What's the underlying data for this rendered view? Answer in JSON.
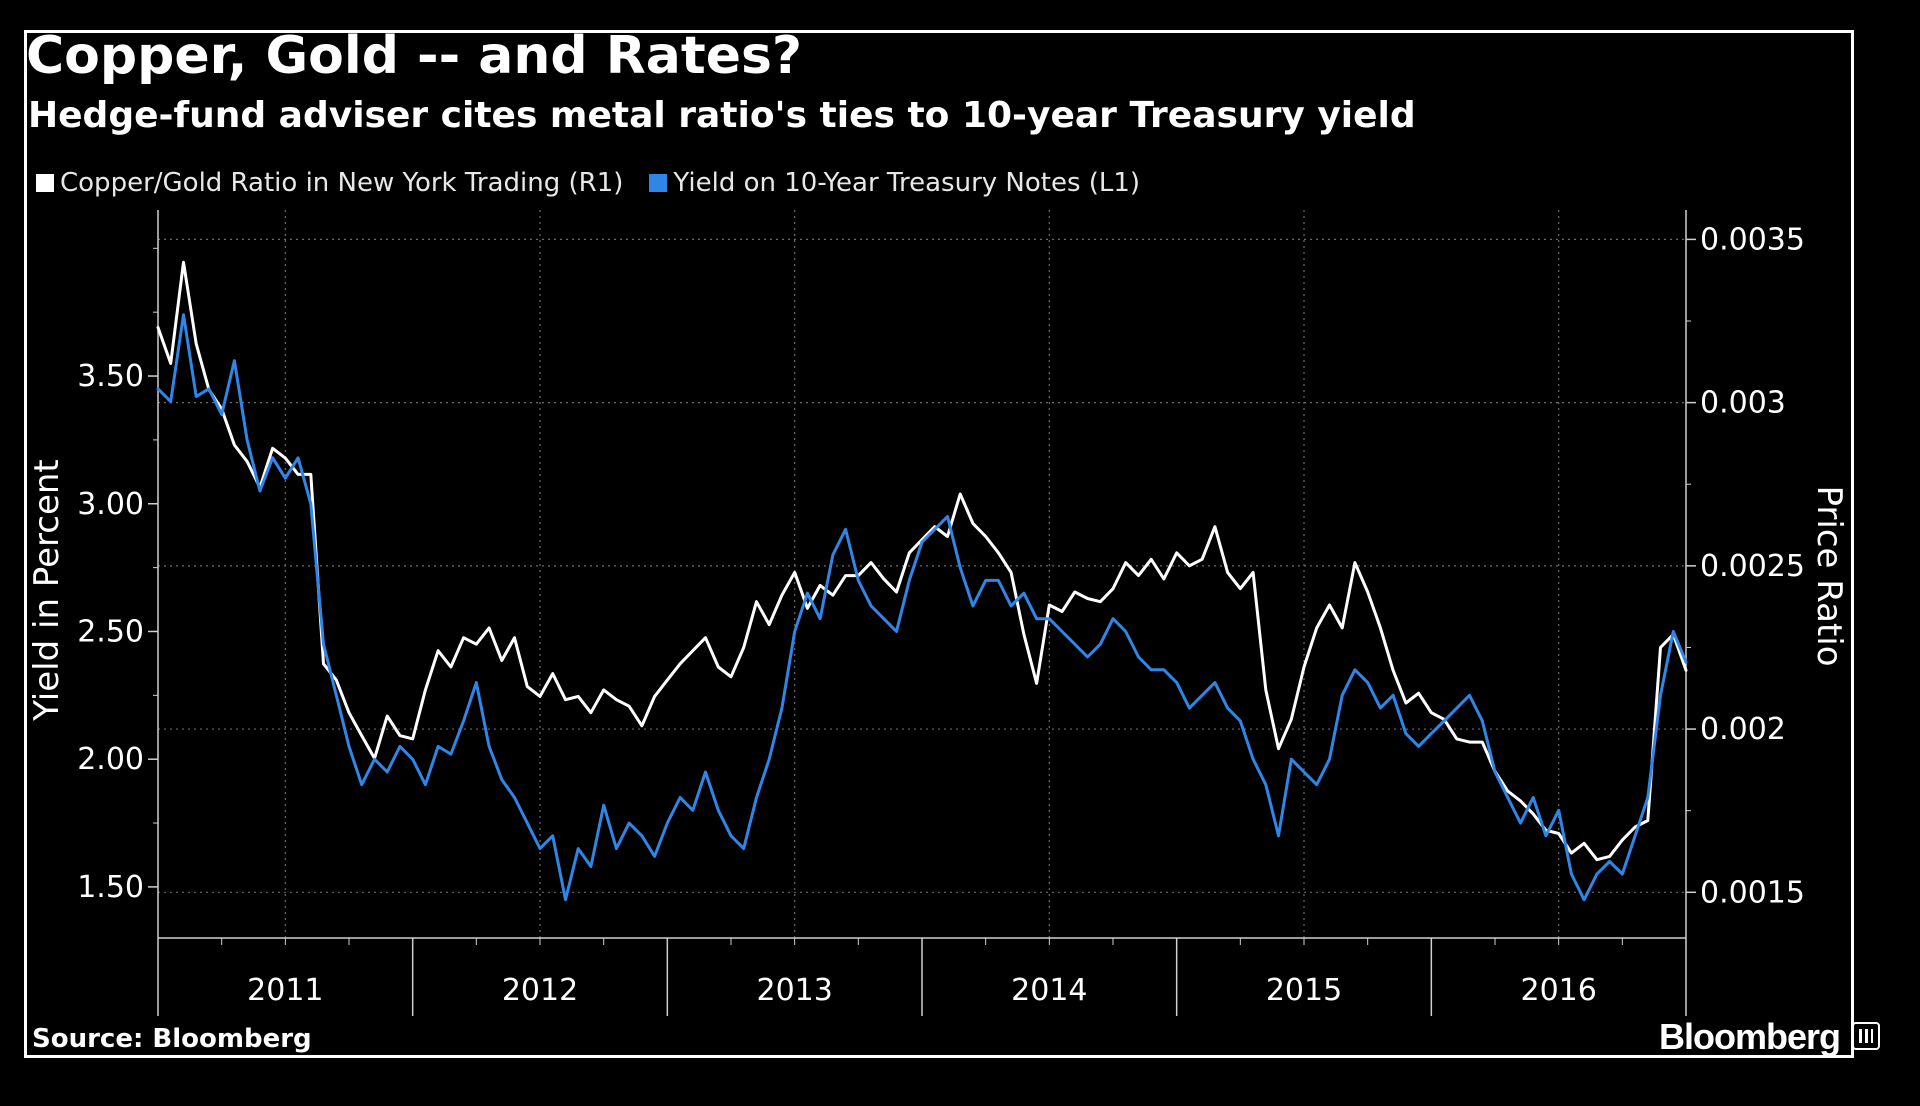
{
  "title": "Copper, Gold -- and Rates?",
  "subtitle": "Hedge-fund adviser cites metal ratio's ties to 10-year Treasury yield",
  "source": "Source: Bloomberg",
  "brand": "Bloomberg",
  "colors": {
    "background": "#000000",
    "copper_gold": "#ffffff",
    "treasury": "#2f86e6",
    "grid": "#6a6a6a",
    "axis": "#cfcfcf"
  },
  "chart_data": {
    "type": "line",
    "title": "Copper, Gold -- and Rates?",
    "subtitle": "Hedge-fund adviser cites metal ratio's ties to 10-year Treasury yield",
    "xlim": [
      2010.5,
      2016.5
    ],
    "x_tick_labels": [
      "2011",
      "2012",
      "2013",
      "2014",
      "2015",
      "2016"
    ],
    "left_axis": {
      "label": "Yield in Percent",
      "ylim": [
        1.3,
        4.15
      ],
      "ticks": [
        1.5,
        2.0,
        2.5,
        3.0,
        3.5
      ],
      "tick_labels": [
        "1.50",
        "2.00",
        "2.50",
        "3.00",
        "3.50"
      ]
    },
    "right_axis": {
      "label": "Price Ratio",
      "ylim": [
        0.00136,
        0.00359
      ],
      "ticks": [
        0.0015,
        0.002,
        0.0025,
        0.003,
        0.0035
      ],
      "tick_labels": [
        "0.0015",
        "0.002",
        "0.0025",
        "0.003",
        "0.0035"
      ]
    },
    "legend": {
      "position": "top-left"
    },
    "grid": true,
    "series": [
      {
        "name": "Copper/Gold Ratio in New York Trading (R1)",
        "axis": "right",
        "color": "#ffffff",
        "points": [
          [
            2010.5,
            0.00323
          ],
          [
            2010.55,
            0.00312
          ],
          [
            2010.6,
            0.00343
          ],
          [
            2010.65,
            0.00318
          ],
          [
            2010.7,
            0.00304
          ],
          [
            2010.75,
            0.00298
          ],
          [
            2010.8,
            0.00287
          ],
          [
            2010.85,
            0.00282
          ],
          [
            2010.9,
            0.00274
          ],
          [
            2010.95,
            0.00286
          ],
          [
            2011.0,
            0.00283
          ],
          [
            2011.05,
            0.00278
          ],
          [
            2011.1,
            0.00278
          ],
          [
            2011.15,
            0.0022
          ],
          [
            2011.2,
            0.00215
          ],
          [
            2011.25,
            0.00205
          ],
          [
            2011.3,
            0.00198
          ],
          [
            2011.35,
            0.00191
          ],
          [
            2011.4,
            0.00204
          ],
          [
            2011.45,
            0.00198
          ],
          [
            2011.5,
            0.00197
          ],
          [
            2011.55,
            0.00212
          ],
          [
            2011.6,
            0.00224
          ],
          [
            2011.65,
            0.00219
          ],
          [
            2011.7,
            0.00228
          ],
          [
            2011.75,
            0.00226
          ],
          [
            2011.8,
            0.00231
          ],
          [
            2011.85,
            0.00221
          ],
          [
            2011.9,
            0.00228
          ],
          [
            2011.95,
            0.00213
          ],
          [
            2012.0,
            0.0021
          ],
          [
            2012.05,
            0.00217
          ],
          [
            2012.1,
            0.00209
          ],
          [
            2012.15,
            0.0021
          ],
          [
            2012.2,
            0.00205
          ],
          [
            2012.25,
            0.00212
          ],
          [
            2012.3,
            0.00209
          ],
          [
            2012.35,
            0.00207
          ],
          [
            2012.4,
            0.00201
          ],
          [
            2012.45,
            0.0021
          ],
          [
            2012.5,
            0.00215
          ],
          [
            2012.55,
            0.0022
          ],
          [
            2012.6,
            0.00224
          ],
          [
            2012.65,
            0.00228
          ],
          [
            2012.7,
            0.00219
          ],
          [
            2012.75,
            0.00216
          ],
          [
            2012.8,
            0.00225
          ],
          [
            2012.85,
            0.00239
          ],
          [
            2012.9,
            0.00232
          ],
          [
            2012.95,
            0.00241
          ],
          [
            2013.0,
            0.00248
          ],
          [
            2013.05,
            0.00237
          ],
          [
            2013.1,
            0.00244
          ],
          [
            2013.15,
            0.00241
          ],
          [
            2013.2,
            0.00247
          ],
          [
            2013.25,
            0.00247
          ],
          [
            2013.3,
            0.00251
          ],
          [
            2013.35,
            0.00246
          ],
          [
            2013.4,
            0.00242
          ],
          [
            2013.45,
            0.00254
          ],
          [
            2013.5,
            0.00258
          ],
          [
            2013.55,
            0.00262
          ],
          [
            2013.6,
            0.00259
          ],
          [
            2013.65,
            0.00272
          ],
          [
            2013.7,
            0.00263
          ],
          [
            2013.75,
            0.00259
          ],
          [
            2013.8,
            0.00254
          ],
          [
            2013.85,
            0.00248
          ],
          [
            2013.9,
            0.00229
          ],
          [
            2013.95,
            0.00214
          ],
          [
            2014.0,
            0.00238
          ],
          [
            2014.05,
            0.00236
          ],
          [
            2014.1,
            0.00242
          ],
          [
            2014.15,
            0.0024
          ],
          [
            2014.2,
            0.00239
          ],
          [
            2014.25,
            0.00243
          ],
          [
            2014.3,
            0.00251
          ],
          [
            2014.35,
            0.00247
          ],
          [
            2014.4,
            0.00252
          ],
          [
            2014.45,
            0.00246
          ],
          [
            2014.5,
            0.00254
          ],
          [
            2014.55,
            0.0025
          ],
          [
            2014.6,
            0.00252
          ],
          [
            2014.65,
            0.00262
          ],
          [
            2014.7,
            0.00248
          ],
          [
            2014.75,
            0.00243
          ],
          [
            2014.8,
            0.00248
          ],
          [
            2014.85,
            0.00212
          ],
          [
            2014.9,
            0.00194
          ],
          [
            2014.95,
            0.00203
          ],
          [
            2015.0,
            0.00219
          ],
          [
            2015.05,
            0.00231
          ],
          [
            2015.1,
            0.00238
          ],
          [
            2015.15,
            0.00231
          ],
          [
            2015.2,
            0.00251
          ],
          [
            2015.25,
            0.00242
          ],
          [
            2015.3,
            0.00231
          ],
          [
            2015.35,
            0.00218
          ],
          [
            2015.4,
            0.00208
          ],
          [
            2015.45,
            0.00211
          ],
          [
            2015.5,
            0.00205
          ],
          [
            2015.55,
            0.00203
          ],
          [
            2015.6,
            0.00197
          ],
          [
            2015.65,
            0.00196
          ],
          [
            2015.7,
            0.00196
          ],
          [
            2015.75,
            0.00187
          ],
          [
            2015.8,
            0.00181
          ],
          [
            2015.85,
            0.00178
          ],
          [
            2015.9,
            0.00174
          ],
          [
            2015.95,
            0.00169
          ],
          [
            2016.0,
            0.00168
          ],
          [
            2016.05,
            0.00162
          ],
          [
            2016.1,
            0.00165
          ],
          [
            2016.15,
            0.0016
          ],
          [
            2016.2,
            0.00161
          ],
          [
            2016.25,
            0.00166
          ],
          [
            2016.3,
            0.0017
          ],
          [
            2016.35,
            0.00172
          ],
          [
            2016.4,
            0.00225
          ],
          [
            2016.45,
            0.00229
          ],
          [
            2016.5,
            0.00218
          ]
        ]
      },
      {
        "name": "Yield on 10-Year Treasury Notes (L1)",
        "axis": "left",
        "color": "#2f86e6",
        "points": [
          [
            2010.5,
            3.45
          ],
          [
            2010.55,
            3.4
          ],
          [
            2010.6,
            3.74
          ],
          [
            2010.65,
            3.42
          ],
          [
            2010.7,
            3.45
          ],
          [
            2010.75,
            3.35
          ],
          [
            2010.8,
            3.56
          ],
          [
            2010.85,
            3.25
          ],
          [
            2010.9,
            3.05
          ],
          [
            2010.95,
            3.18
          ],
          [
            2011.0,
            3.1
          ],
          [
            2011.05,
            3.18
          ],
          [
            2011.1,
            3.0
          ],
          [
            2011.15,
            2.45
          ],
          [
            2011.2,
            2.25
          ],
          [
            2011.25,
            2.05
          ],
          [
            2011.3,
            1.9
          ],
          [
            2011.35,
            2.0
          ],
          [
            2011.4,
            1.95
          ],
          [
            2011.45,
            2.05
          ],
          [
            2011.5,
            2.0
          ],
          [
            2011.55,
            1.9
          ],
          [
            2011.6,
            2.05
          ],
          [
            2011.65,
            2.02
          ],
          [
            2011.7,
            2.15
          ],
          [
            2011.75,
            2.3
          ],
          [
            2011.8,
            2.05
          ],
          [
            2011.85,
            1.92
          ],
          [
            2011.9,
            1.85
          ],
          [
            2011.95,
            1.75
          ],
          [
            2012.0,
            1.65
          ],
          [
            2012.05,
            1.7
          ],
          [
            2012.1,
            1.45
          ],
          [
            2012.15,
            1.65
          ],
          [
            2012.2,
            1.58
          ],
          [
            2012.25,
            1.82
          ],
          [
            2012.3,
            1.65
          ],
          [
            2012.35,
            1.75
          ],
          [
            2012.4,
            1.7
          ],
          [
            2012.45,
            1.62
          ],
          [
            2012.5,
            1.75
          ],
          [
            2012.55,
            1.85
          ],
          [
            2012.6,
            1.8
          ],
          [
            2012.65,
            1.95
          ],
          [
            2012.7,
            1.8
          ],
          [
            2012.75,
            1.7
          ],
          [
            2012.8,
            1.65
          ],
          [
            2012.85,
            1.85
          ],
          [
            2012.9,
            2.0
          ],
          [
            2012.95,
            2.2
          ],
          [
            2013.0,
            2.5
          ],
          [
            2013.05,
            2.65
          ],
          [
            2013.1,
            2.55
          ],
          [
            2013.15,
            2.8
          ],
          [
            2013.2,
            2.9
          ],
          [
            2013.25,
            2.7
          ],
          [
            2013.3,
            2.6
          ],
          [
            2013.35,
            2.55
          ],
          [
            2013.4,
            2.5
          ],
          [
            2013.45,
            2.7
          ],
          [
            2013.5,
            2.85
          ],
          [
            2013.55,
            2.9
          ],
          [
            2013.6,
            2.95
          ],
          [
            2013.65,
            2.75
          ],
          [
            2013.7,
            2.6
          ],
          [
            2013.75,
            2.7
          ],
          [
            2013.8,
            2.7
          ],
          [
            2013.85,
            2.6
          ],
          [
            2013.9,
            2.65
          ],
          [
            2013.95,
            2.55
          ],
          [
            2014.0,
            2.55
          ],
          [
            2014.05,
            2.5
          ],
          [
            2014.1,
            2.45
          ],
          [
            2014.15,
            2.4
          ],
          [
            2014.2,
            2.45
          ],
          [
            2014.25,
            2.55
          ],
          [
            2014.3,
            2.5
          ],
          [
            2014.35,
            2.4
          ],
          [
            2014.4,
            2.35
          ],
          [
            2014.45,
            2.35
          ],
          [
            2014.5,
            2.3
          ],
          [
            2014.55,
            2.2
          ],
          [
            2014.6,
            2.25
          ],
          [
            2014.65,
            2.3
          ],
          [
            2014.7,
            2.2
          ],
          [
            2014.75,
            2.15
          ],
          [
            2014.8,
            2.0
          ],
          [
            2014.85,
            1.9
          ],
          [
            2014.9,
            1.7
          ],
          [
            2014.95,
            2.0
          ],
          [
            2015.0,
            1.95
          ],
          [
            2015.05,
            1.9
          ],
          [
            2015.1,
            2.0
          ],
          [
            2015.15,
            2.25
          ],
          [
            2015.2,
            2.35
          ],
          [
            2015.25,
            2.3
          ],
          [
            2015.3,
            2.2
          ],
          [
            2015.35,
            2.25
          ],
          [
            2015.4,
            2.1
          ],
          [
            2015.45,
            2.05
          ],
          [
            2015.5,
            2.1
          ],
          [
            2015.55,
            2.15
          ],
          [
            2015.6,
            2.2
          ],
          [
            2015.65,
            2.25
          ],
          [
            2015.7,
            2.15
          ],
          [
            2015.75,
            1.95
          ],
          [
            2015.8,
            1.85
          ],
          [
            2015.85,
            1.75
          ],
          [
            2015.9,
            1.85
          ],
          [
            2015.95,
            1.7
          ],
          [
            2016.0,
            1.8
          ],
          [
            2016.05,
            1.55
          ],
          [
            2016.1,
            1.45
          ],
          [
            2016.15,
            1.55
          ],
          [
            2016.2,
            1.6
          ],
          [
            2016.25,
            1.55
          ],
          [
            2016.3,
            1.7
          ],
          [
            2016.35,
            1.85
          ],
          [
            2016.4,
            2.25
          ],
          [
            2016.45,
            2.5
          ],
          [
            2016.5,
            2.38
          ]
        ]
      }
    ]
  }
}
